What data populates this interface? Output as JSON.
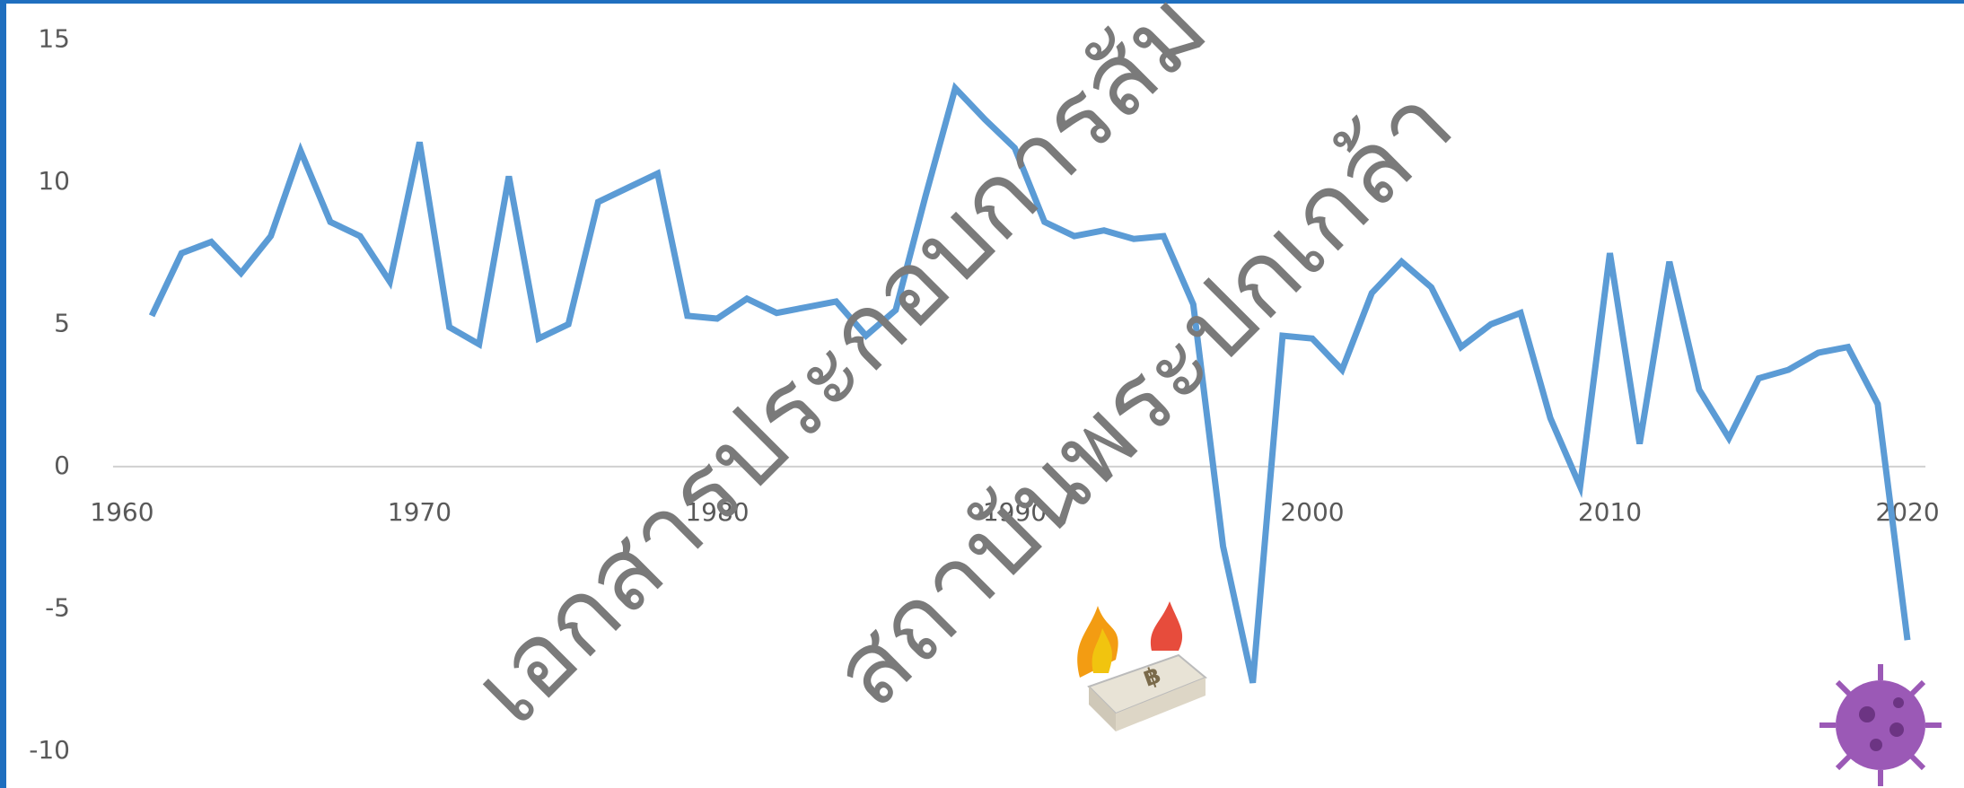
{
  "chart_data": {
    "type": "line",
    "watermark": [
      "เอกสารประกอบการสัม",
      "สถาบันพระปกเกล้า"
    ],
    "x": [
      1961,
      1962,
      1963,
      1964,
      1965,
      1966,
      1967,
      1968,
      1969,
      1970,
      1971,
      1972,
      1973,
      1974,
      1975,
      1976,
      1977,
      1978,
      1979,
      1980,
      1981,
      1982,
      1983,
      1984,
      1985,
      1986,
      1987,
      1988,
      1989,
      1990,
      1991,
      1992,
      1993,
      1994,
      1995,
      1996,
      1997,
      1998,
      1999,
      2000,
      2001,
      2002,
      2003,
      2004,
      2005,
      2006,
      2007,
      2008,
      2009,
      2010,
      2011,
      2012,
      2013,
      2014,
      2015,
      2016,
      2017,
      2018,
      2019,
      2020
    ],
    "series": [
      {
        "color": "#5b9bd5",
        "values": [
          5.3,
          7.5,
          7.9,
          6.8,
          8.1,
          11.1,
          8.6,
          8.1,
          6.5,
          11.4,
          4.9,
          4.3,
          10.2,
          4.5,
          5.0,
          9.3,
          9.8,
          10.3,
          5.3,
          5.2,
          5.9,
          5.4,
          5.6,
          5.8,
          4.6,
          5.5,
          9.5,
          13.3,
          12.2,
          11.2,
          8.6,
          8.1,
          8.3,
          8.0,
          8.1,
          5.7,
          -2.8,
          -7.6,
          4.6,
          4.5,
          3.4,
          6.1,
          7.2,
          6.3,
          4.2,
          5.0,
          5.4,
          1.7,
          -0.7,
          7.5,
          0.8,
          7.2,
          2.7,
          1.0,
          3.1,
          3.4,
          4.0,
          4.2,
          2.2,
          -6.1
        ]
      }
    ],
    "xlim": [
      1955.9,
      2021.9
    ],
    "xticks": [
      1960,
      1970,
      1980,
      1990,
      2000,
      2010,
      2020
    ],
    "ylim": [
      -11.3,
      16.4
    ],
    "yticks": [
      -10,
      -5,
      0,
      5,
      10,
      15
    ]
  }
}
